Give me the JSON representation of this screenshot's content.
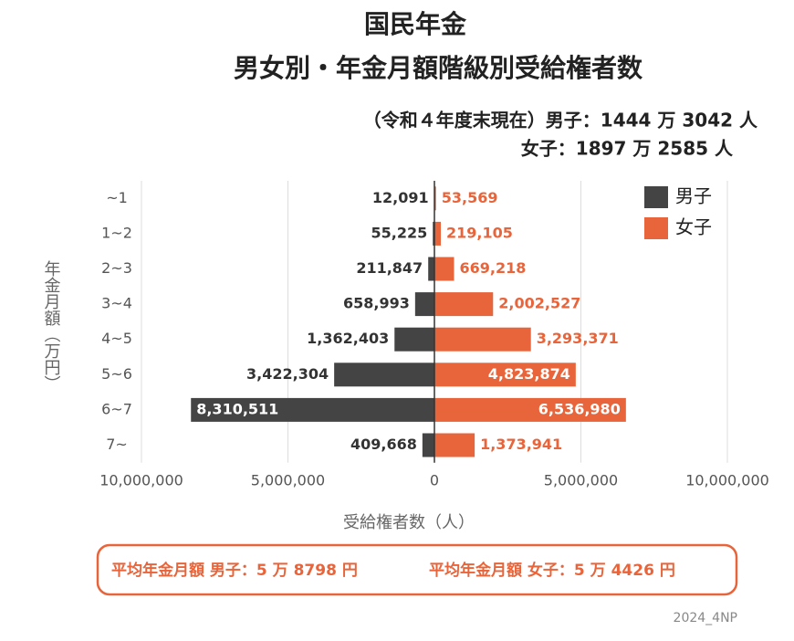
{
  "chart_data": {
    "type": "diverging-bar",
    "title": "国民年金",
    "subtitle": "男女別・年金月額階級別受給権者数",
    "notes": [
      "（令和４年度末現在）男子：1444 万 3042 人",
      "女子：1897 万 2585 人"
    ],
    "y_label": "年金月額（万円）",
    "x_label": "受給権者数（人）",
    "categories": [
      "~1",
      "1~2",
      "2~3",
      "3~4",
      "4~5",
      "5~6",
      "6~7",
      "7~"
    ],
    "series": [
      {
        "name": "男子",
        "color": "#444444",
        "values": [
          -12091,
          -55225,
          -211847,
          -658993,
          -1362403,
          -3422304,
          -8310511,
          -409668
        ],
        "value_labels": [
          "12,091",
          "55,225",
          "211,847",
          "658,993",
          "1,362,403",
          "3,422,304",
          "8,310,511",
          "409,668"
        ]
      },
      {
        "name": "女子",
        "color": "#e8643a",
        "values": [
          53569,
          219105,
          669218,
          2002527,
          3293371,
          4823874,
          6536980,
          1373941
        ],
        "value_labels": [
          "53,569",
          "219,105",
          "669,218",
          "2,002,527",
          "3,293,371",
          "4,823,874",
          "6,536,980",
          "1,373,941"
        ]
      }
    ],
    "xlim": [
      -10000000,
      10000000
    ],
    "xticks": [
      {
        "value": -10000000,
        "label": "10,000,000"
      },
      {
        "value": -5000000,
        "label": "5,000,000"
      },
      0,
      {
        "value": 5000000,
        "label": "5,000,000"
      },
      {
        "value": 10000000,
        "label": "10,000,000"
      }
    ],
    "grid": true,
    "legend": "top-right",
    "annotations": [
      "平均年金月額 男子：5 万 8798 円",
      "平均年金月額 女子：5 万 4426 円"
    ],
    "source": "2024_4NP"
  }
}
